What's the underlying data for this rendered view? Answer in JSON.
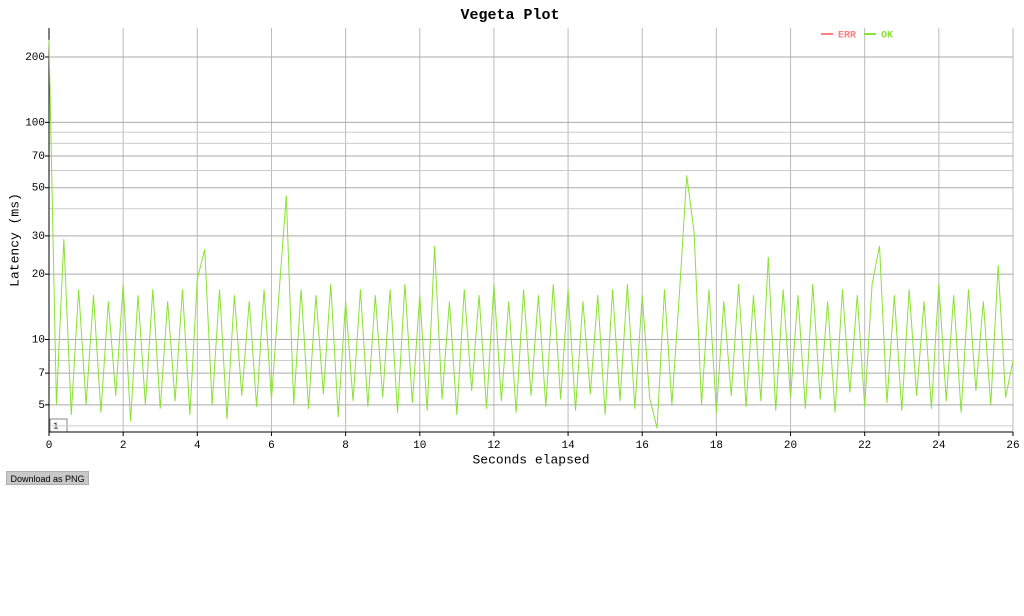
{
  "chart_data": {
    "type": "line",
    "title": "Vegeta Plot",
    "x_label": "Seconds elapsed",
    "y_label": "Latency (ms)",
    "log_y": true,
    "grid": true,
    "legend": "top-right",
    "xlim": [
      0,
      26
    ],
    "xticks": [
      0,
      2,
      4,
      6,
      8,
      10,
      12,
      14,
      16,
      18,
      20,
      22,
      24,
      26
    ],
    "ylim": [
      3.75,
      272
    ],
    "yticks": [
      5,
      7,
      10,
      20,
      30,
      50,
      70,
      100,
      200
    ],
    "y_minor_grid": [
      4,
      6,
      8,
      9,
      40,
      60,
      80,
      90
    ],
    "x": [
      0,
      0.2,
      0.4,
      0.6,
      0.8,
      1,
      1.2,
      1.4,
      1.6,
      1.8,
      2,
      2.2,
      2.4,
      2.6,
      2.8,
      3,
      3.2,
      3.4,
      3.6,
      3.8,
      4,
      4.2,
      4.4,
      4.6,
      4.8,
      5,
      5.2,
      5.4,
      5.6,
      5.8,
      6,
      6.2,
      6.4,
      6.6,
      6.8,
      7,
      7.2,
      7.4,
      7.6,
      7.8,
      8,
      8.2,
      8.4,
      8.6,
      8.8,
      9,
      9.2,
      9.4,
      9.6,
      9.8,
      10,
      10.2,
      10.4,
      10.6,
      10.8,
      11,
      11.2,
      11.4,
      11.6,
      11.8,
      12,
      12.2,
      12.4,
      12.6,
      12.8,
      13,
      13.2,
      13.4,
      13.6,
      13.8,
      14,
      14.2,
      14.4,
      14.6,
      14.8,
      15,
      15.2,
      15.4,
      15.6,
      15.8,
      16,
      16.2,
      16.4,
      16.6,
      16.8,
      17,
      17.2,
      17.4,
      17.6,
      17.8,
      18,
      18.2,
      18.4,
      18.6,
      18.8,
      19,
      19.2,
      19.4,
      19.6,
      19.8,
      20,
      20.2,
      20.4,
      20.6,
      20.8,
      21,
      21.2,
      21.4,
      21.6,
      21.8,
      22,
      22.2,
      22.4,
      22.6,
      22.8,
      23,
      23.2,
      23.4,
      23.6,
      23.8,
      24,
      24.2,
      24.4,
      24.6,
      24.8,
      25,
      25.2,
      25.4,
      25.6,
      25.8,
      26
    ],
    "series": [
      {
        "name": "ERR",
        "color": "#ff7f7f",
        "values": [
          null,
          null,
          null,
          null,
          null,
          null,
          null,
          null,
          null,
          null,
          null,
          null,
          null,
          null,
          null,
          null,
          null,
          null,
          null,
          null,
          null,
          null,
          null,
          null,
          null,
          null,
          null,
          null,
          null,
          null,
          null,
          null,
          null,
          null,
          null,
          null,
          null,
          null,
          null,
          null,
          null,
          null,
          null,
          null,
          null,
          null,
          null,
          null,
          null,
          null,
          null,
          null,
          null,
          null,
          null,
          null,
          null,
          null,
          null,
          null,
          null,
          null,
          null,
          null,
          null,
          null,
          null,
          null,
          null,
          null,
          null,
          null,
          null,
          null,
          null,
          null,
          null,
          null,
          null,
          null,
          null,
          null,
          null,
          null,
          null,
          null,
          null,
          null,
          null,
          null,
          null,
          null,
          null,
          null,
          null,
          null,
          null,
          null,
          null,
          null,
          null,
          null,
          null,
          null,
          null,
          null,
          null,
          null,
          null,
          null,
          null,
          null,
          null,
          null,
          null,
          null,
          null,
          null,
          null,
          null,
          null,
          null,
          null,
          null,
          null,
          null,
          null,
          null,
          null,
          null,
          null
        ]
      },
      {
        "name": "OK",
        "color": "#8ae234",
        "values": [
          240,
          5,
          29,
          4.5,
          17,
          5,
          16,
          4.6,
          15,
          5.5,
          18,
          4.2,
          16,
          5,
          17,
          4.8,
          15,
          5.2,
          17,
          4.5,
          19,
          26,
          5,
          17,
          4.3,
          16,
          5.5,
          15,
          4.9,
          17,
          5.3,
          16,
          46,
          5,
          17,
          4.8,
          16,
          5.6,
          18,
          4.4,
          15,
          5.2,
          17,
          4.9,
          16,
          5.4,
          17,
          4.6,
          18,
          5.1,
          16,
          4.7,
          27,
          5.3,
          15,
          4.5,
          17,
          5.8,
          16,
          4.8,
          18,
          5.2,
          15,
          4.6,
          17,
          5.5,
          16,
          4.9,
          18,
          5.3,
          17,
          4.7,
          15,
          5.6,
          16,
          4.5,
          17,
          5.2,
          18,
          4.8,
          16,
          5.4,
          3.9,
          17,
          5,
          16,
          57,
          31,
          5,
          17,
          4.6,
          15,
          5.5,
          18,
          4.9,
          16,
          5.2,
          24,
          4.7,
          17,
          5.4,
          16,
          4.8,
          18,
          5.3,
          15,
          4.6,
          17,
          5.7,
          16,
          4.9,
          18,
          27,
          5.1,
          16,
          4.7,
          17,
          5.5,
          15,
          4.8,
          18,
          5.2,
          16,
          4.6,
          17,
          5.8,
          15,
          5,
          22,
          5.4,
          8
        ]
      }
    ]
  },
  "controls": {
    "roll_period": "1",
    "download_button": "Download as PNG"
  }
}
